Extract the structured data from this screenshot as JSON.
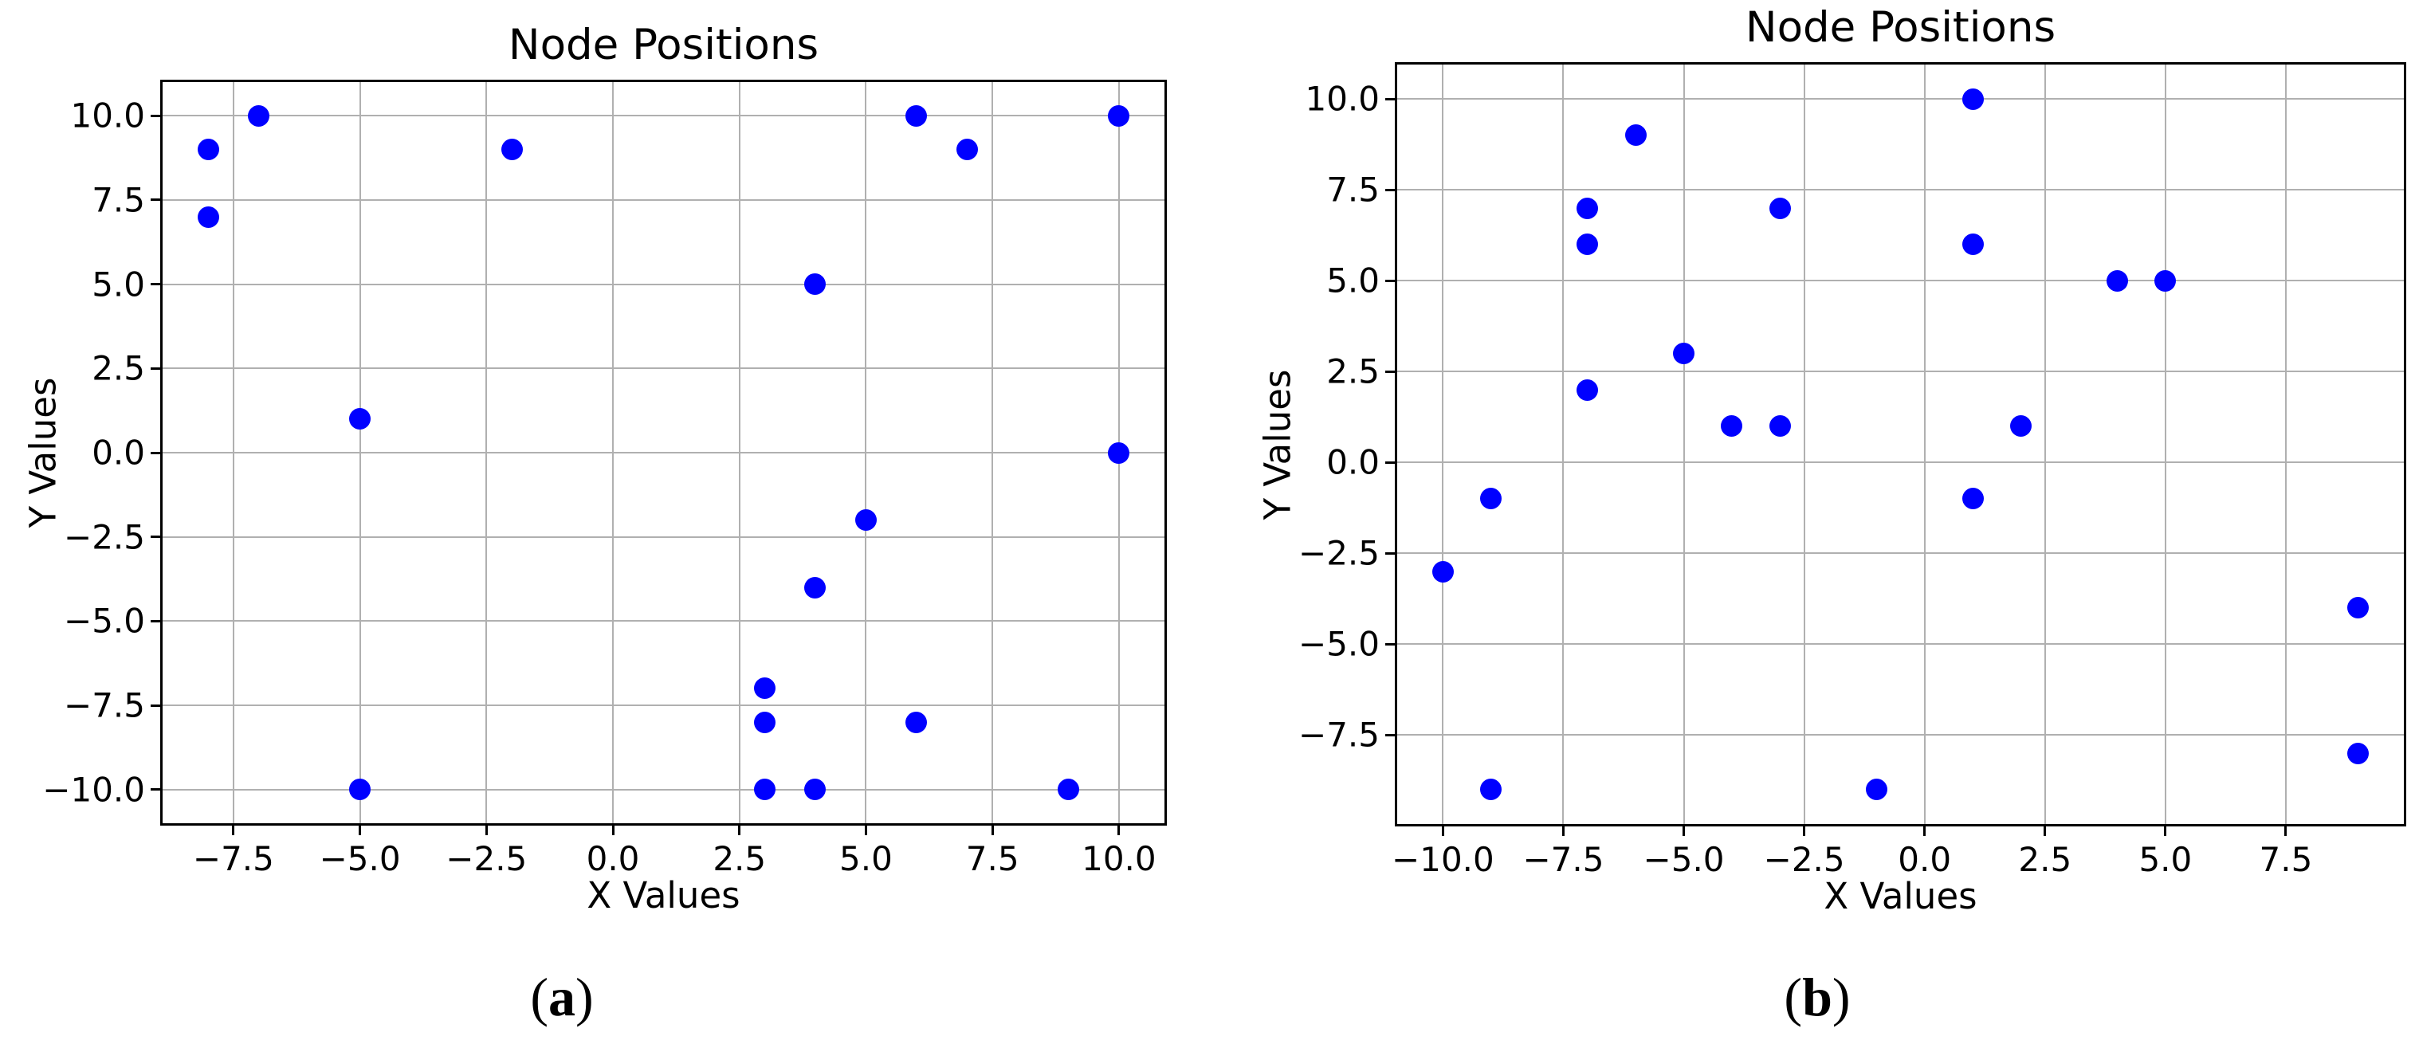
{
  "figure": {
    "background": "#ffffff",
    "marker_color": "#0000ff",
    "grid_color": "#b0b0b0",
    "spine_color": "#000000",
    "text_color": "#000000"
  },
  "chart_data": [
    {
      "type": "scatter",
      "title": "Node Positions",
      "xlabel": "X Values",
      "ylabel": "Y Values",
      "caption": "(a)",
      "caption_open": "(",
      "caption_letter": "a",
      "caption_close": ")",
      "x": [
        -8,
        -7,
        -8,
        -2,
        -5,
        -5,
        6,
        7,
        10,
        4,
        10,
        5,
        4,
        3,
        3,
        6,
        3,
        4,
        9
      ],
      "y": [
        9,
        10,
        7,
        9,
        1,
        -10,
        10,
        9,
        10,
        5,
        0,
        -2,
        -4,
        -7,
        -8,
        -8,
        -10,
        -10,
        -10
      ],
      "xlim": [
        -8.9,
        10.9
      ],
      "ylim": [
        -11.0,
        11.0
      ],
      "xticks": [
        -7.5,
        -5.0,
        -2.5,
        0.0,
        2.5,
        5.0,
        7.5,
        10.0
      ],
      "yticks": [
        -10.0,
        -7.5,
        -5.0,
        -2.5,
        0.0,
        2.5,
        5.0,
        7.5,
        10.0
      ],
      "grid": true,
      "legend": null,
      "marker_color": "#0000ff"
    },
    {
      "type": "scatter",
      "title": "Node Positions",
      "xlabel": "X Values",
      "ylabel": "Y Values",
      "caption": "(b)",
      "caption_open": "(",
      "caption_letter": "b",
      "caption_close": ")",
      "x": [
        -6,
        -7,
        -7,
        -3,
        -5,
        -7,
        -4,
        -3,
        -10,
        -9,
        -9,
        -1,
        1,
        1,
        4,
        5,
        2,
        1,
        9,
        9
      ],
      "y": [
        9,
        7,
        6,
        7,
        3,
        2,
        1,
        1,
        -3,
        -1,
        -9,
        -9,
        10,
        6,
        5,
        5,
        1,
        -1,
        -4,
        -8
      ],
      "xlim": [
        -10.95,
        9.95
      ],
      "ylim": [
        -9.95,
        10.95
      ],
      "xticks": [
        -10.0,
        -7.5,
        -5.0,
        -2.5,
        0.0,
        2.5,
        5.0,
        7.5
      ],
      "yticks": [
        -7.5,
        -5.0,
        -2.5,
        0.0,
        2.5,
        5.0,
        7.5,
        10.0
      ],
      "grid": true,
      "legend": null,
      "marker_color": "#0000ff"
    }
  ]
}
